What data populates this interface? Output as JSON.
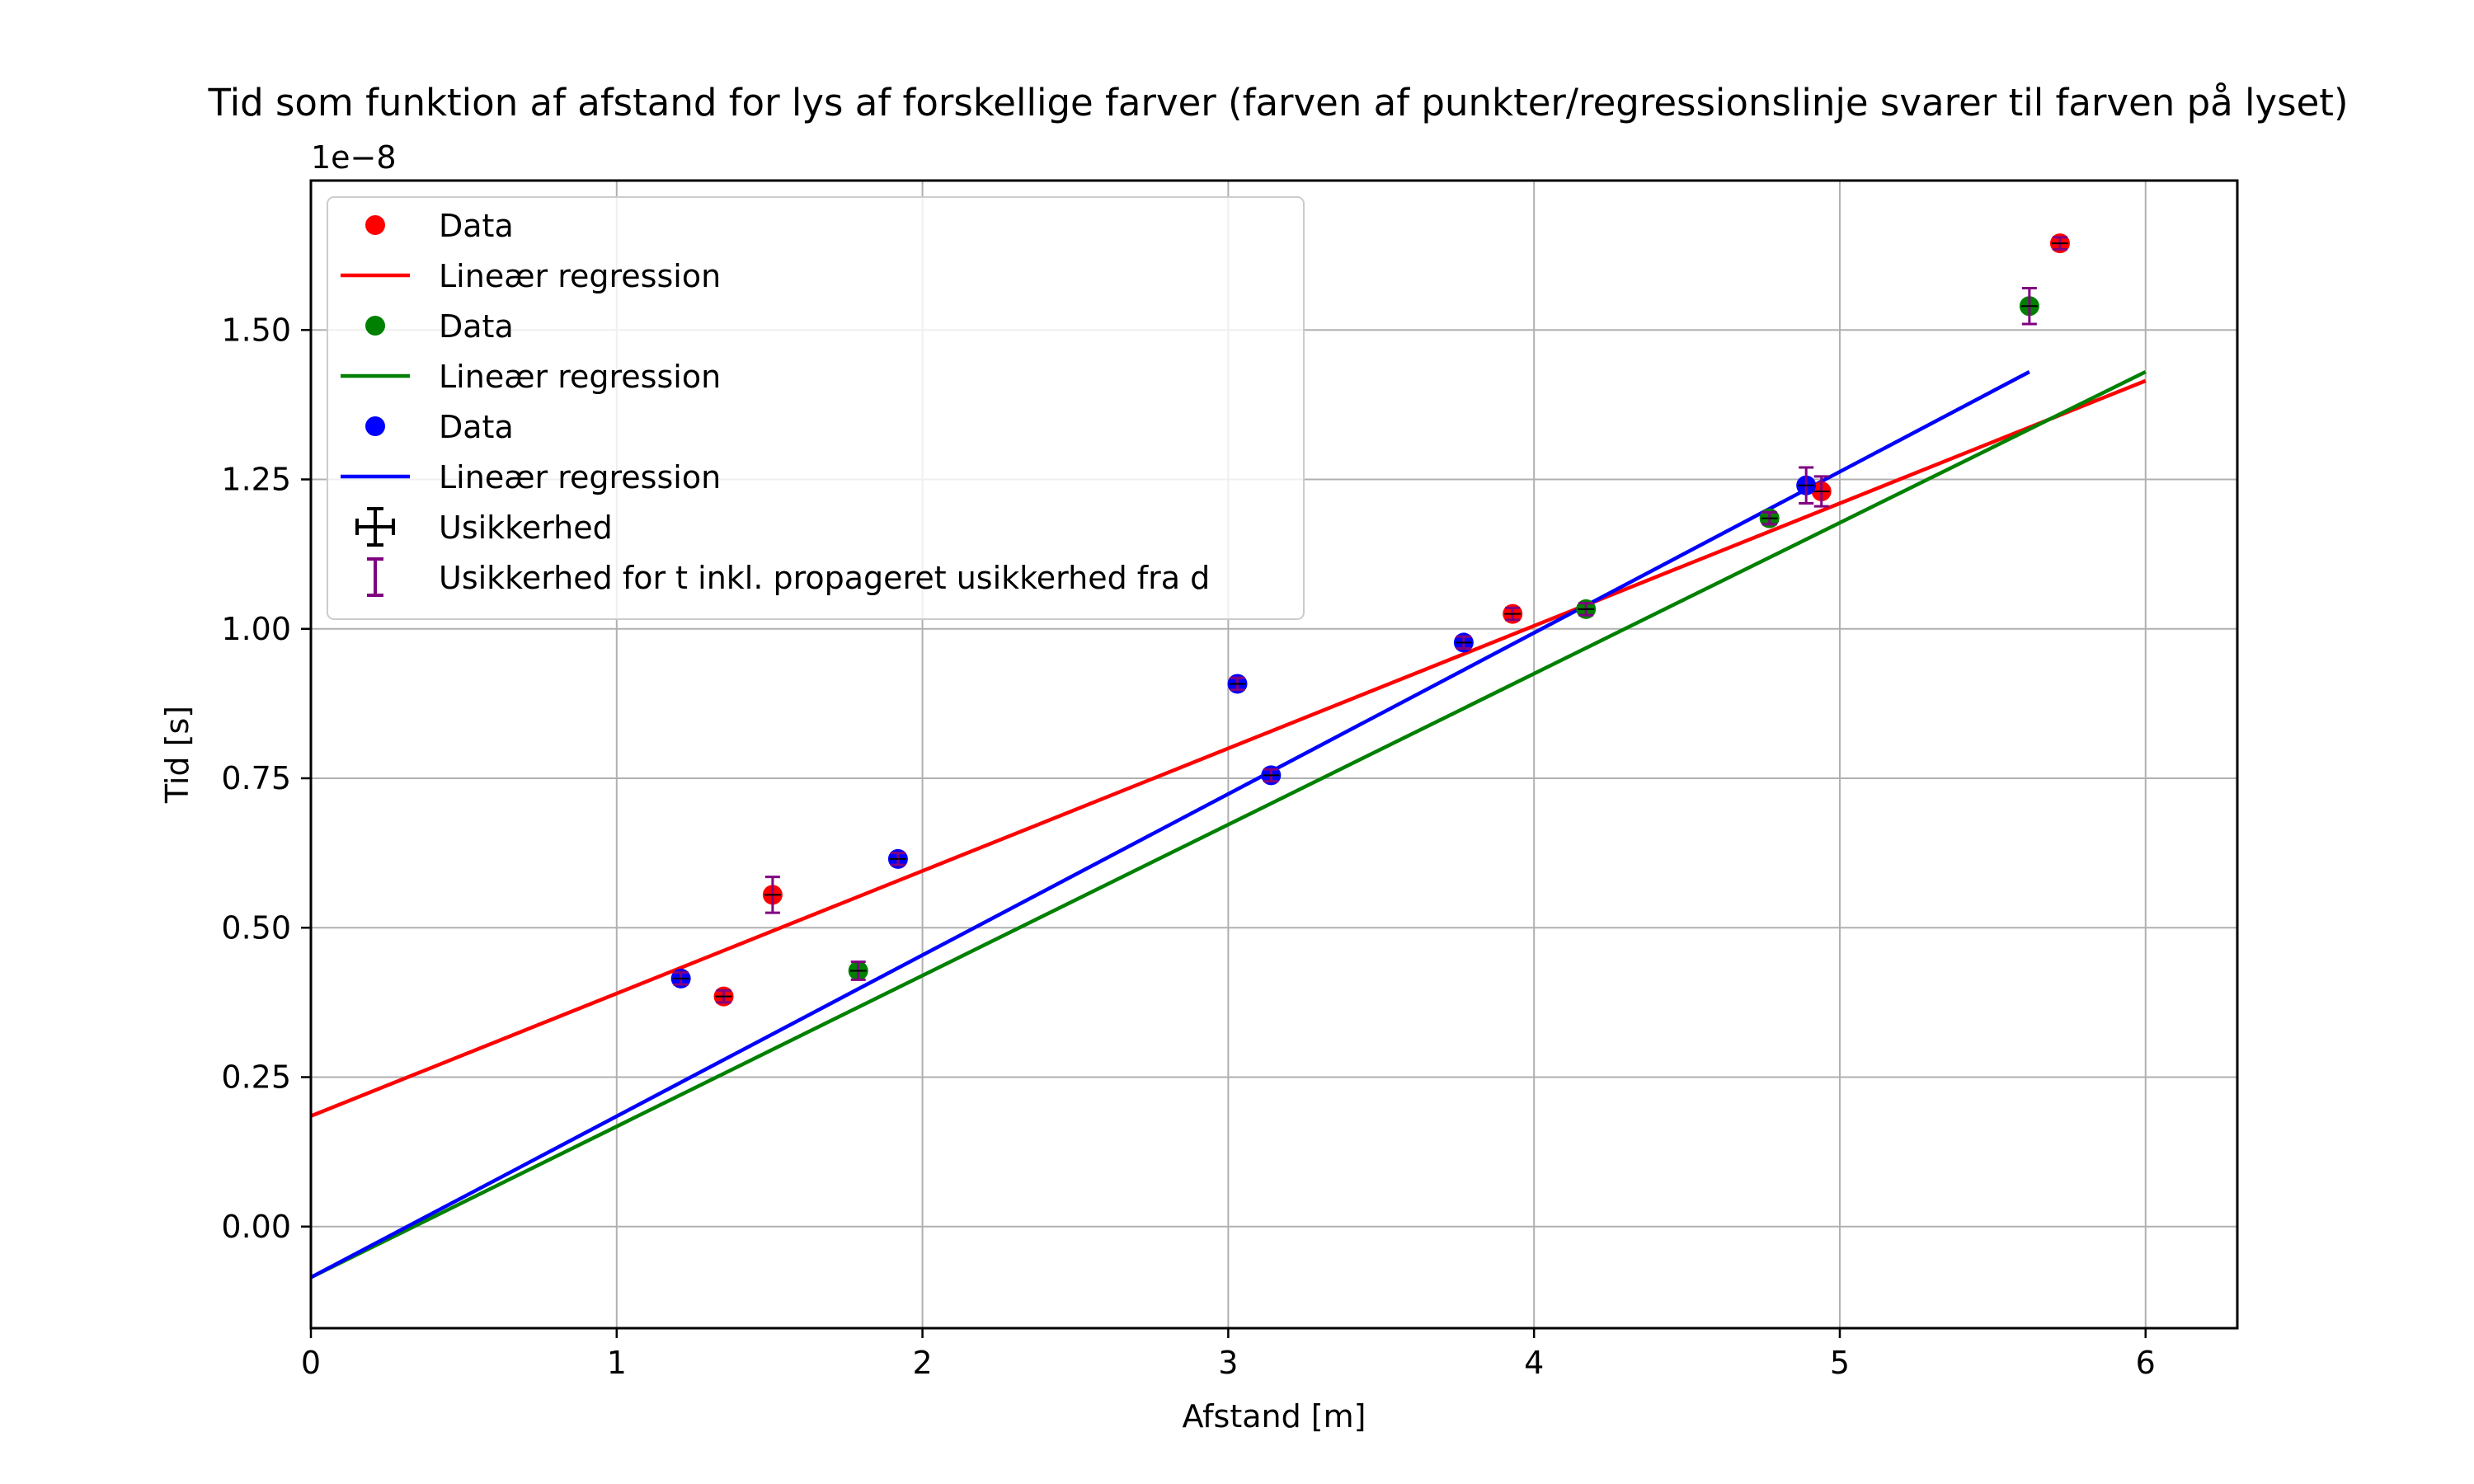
{
  "chart_data": {
    "type": "scatter",
    "title": "Tid som funktion af afstand for lys af forskellige farver (farven af punkter/regressionslinje svarer til farven på lyset)",
    "xlabel": "Afstand [m]",
    "ylabel": "Tid [s]",
    "y_offset_label": "1e−8",
    "xlim": [
      0,
      6.3
    ],
    "ylim": [
      -0.17,
      1.75
    ],
    "x_ticks": [
      0,
      1,
      2,
      3,
      4,
      5,
      6
    ],
    "x_tick_labels": [
      "0",
      "1",
      "2",
      "3",
      "4",
      "5",
      "6"
    ],
    "y_ticks": [
      0.0,
      0.25,
      0.5,
      0.75,
      1.0,
      1.25,
      1.5
    ],
    "y_tick_labels": [
      "0.00",
      "0.25",
      "0.50",
      "0.75",
      "1.00",
      "1.25",
      "1.50"
    ],
    "grid": true,
    "legend_position": "top-left",
    "series": [
      {
        "name": "Data",
        "color": "#ff0000",
        "points": [
          {
            "x": 1.35,
            "y": 0.385,
            "err": 0.01
          },
          {
            "x": 1.51,
            "y": 0.555,
            "err": 0.03
          },
          {
            "x": 3.93,
            "y": 1.025,
            "err": 0.01
          },
          {
            "x": 4.94,
            "y": 1.23,
            "err": 0.025
          },
          {
            "x": 5.72,
            "y": 1.645,
            "err": 0.01
          }
        ],
        "regression": {
          "name": "Lineær regression",
          "x": [
            0,
            6.0
          ],
          "y": [
            0.185,
            1.415
          ]
        }
      },
      {
        "name": "Data",
        "color": "#008000",
        "points": [
          {
            "x": 1.79,
            "y": 0.428,
            "err": 0.015
          },
          {
            "x": 4.17,
            "y": 1.033,
            "err": 0.01
          },
          {
            "x": 4.77,
            "y": 1.185,
            "err": 0.01
          },
          {
            "x": 5.62,
            "y": 1.54,
            "err": 0.03
          }
        ],
        "regression": {
          "name": "Lineær regression",
          "x": [
            0,
            6.0
          ],
          "y": [
            -0.085,
            1.43
          ]
        }
      },
      {
        "name": "Data",
        "color": "#0000ff",
        "points": [
          {
            "x": 1.21,
            "y": 0.415,
            "err": 0.01
          },
          {
            "x": 1.92,
            "y": 0.615,
            "err": 0.01
          },
          {
            "x": 3.03,
            "y": 0.908,
            "err": 0.01
          },
          {
            "x": 3.14,
            "y": 0.755,
            "err": 0.01
          },
          {
            "x": 3.77,
            "y": 0.977,
            "err": 0.01
          },
          {
            "x": 4.89,
            "y": 1.24,
            "err": 0.03
          }
        ],
        "regression": {
          "name": "Lineær regression",
          "x": [
            0,
            5.62
          ],
          "y": [
            -0.085,
            1.43
          ]
        }
      }
    ],
    "legend": [
      {
        "type": "marker",
        "color": "#ff0000",
        "label": "Data"
      },
      {
        "type": "line",
        "color": "#ff0000",
        "label": "Lineær regression"
      },
      {
        "type": "marker",
        "color": "#008000",
        "label": "Data"
      },
      {
        "type": "line",
        "color": "#008000",
        "label": "Lineær regression"
      },
      {
        "type": "marker",
        "color": "#0000ff",
        "label": "Data"
      },
      {
        "type": "line",
        "color": "#0000ff",
        "label": "Lineær regression"
      },
      {
        "type": "errorbar-xy",
        "color": "#000000",
        "label": "Usikkerhed"
      },
      {
        "type": "errorbar-y",
        "color": "#800080",
        "label": "Usikkerhed for t inkl. propageret usikkerhed fra d"
      }
    ],
    "uncertainty_colors": {
      "xy": "#000000",
      "t": "#800080"
    }
  }
}
